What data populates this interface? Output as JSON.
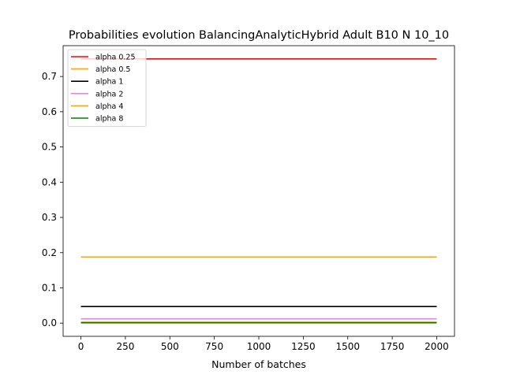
{
  "chart_data": {
    "type": "line",
    "title": "Probabilities evolution BalancingAnalyticHybrid Adult B10 N 10_10",
    "xlabel": "Number of batches",
    "ylabel": "",
    "xlim": [
      -100,
      2100
    ],
    "ylim": [
      -0.0375,
      0.7875
    ],
    "x": [
      0,
      2000
    ],
    "x_ticks": [
      0,
      250,
      500,
      750,
      1000,
      1250,
      1500,
      1750,
      2000
    ],
    "x_tick_labels": [
      "0",
      "250",
      "500",
      "750",
      "1000",
      "1250",
      "1500",
      "1750",
      "2000"
    ],
    "y_ticks": [
      0.0,
      0.1,
      0.2,
      0.3,
      0.4,
      0.5,
      0.6,
      0.7
    ],
    "y_tick_labels": [
      "0.0",
      "0.1",
      "0.2",
      "0.3",
      "0.4",
      "0.5",
      "0.6",
      "0.7"
    ],
    "grid": false,
    "legend_position": "top-left",
    "series": [
      {
        "name": "alpha 0.25",
        "color": "#ff0000",
        "values": [
          0.75,
          0.75
        ]
      },
      {
        "name": "alpha 0.5",
        "color": "#ffa500",
        "values": [
          0.1875,
          0.1875
        ]
      },
      {
        "name": "alpha 1",
        "color": "#000000",
        "values": [
          0.047,
          0.047
        ]
      },
      {
        "name": "alpha 2",
        "color": "#ee82ee",
        "values": [
          0.012,
          0.012
        ]
      },
      {
        "name": "alpha 4",
        "color": "#ffa500",
        "values": [
          0.003,
          0.003
        ]
      },
      {
        "name": "alpha 8",
        "color": "#008000",
        "values": [
          0.001,
          0.001
        ]
      }
    ]
  }
}
